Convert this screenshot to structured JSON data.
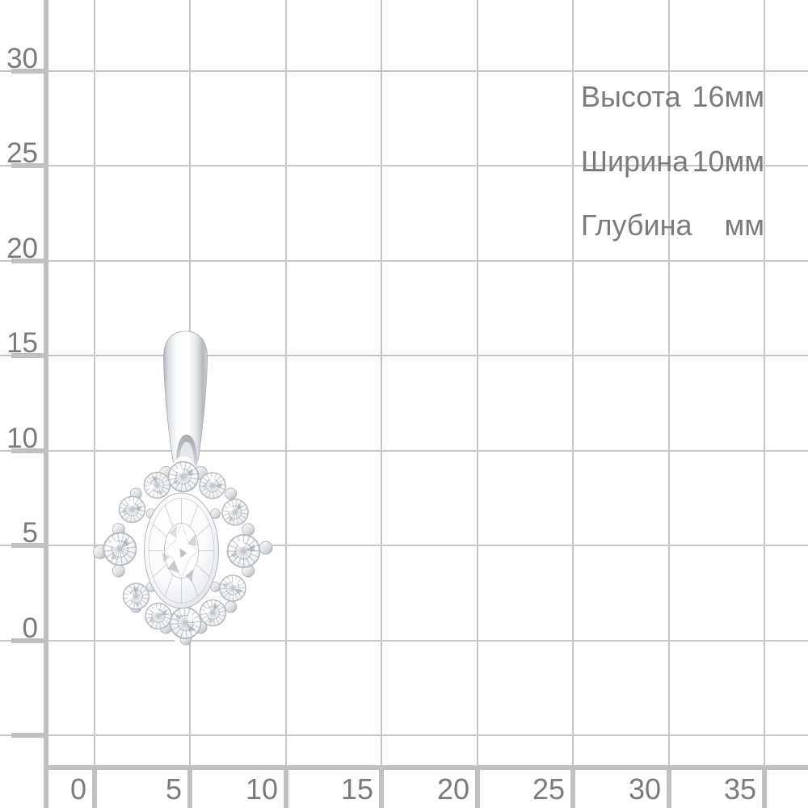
{
  "product": {
    "image_alt": "white gold pendant with oval gemstone and round-stone halo"
  },
  "dimensions": {
    "rows": [
      {
        "label": "Высота",
        "value": "16мм"
      },
      {
        "label": "Ширина",
        "value": "10мм"
      },
      {
        "label": "Глубина",
        "value": "мм"
      }
    ]
  },
  "axes": {
    "y_ticks": [
      "30",
      "25",
      "20",
      "15",
      "10",
      "5",
      "0"
    ],
    "x_ticks": [
      "0",
      "5",
      "10",
      "15",
      "20",
      "25",
      "30",
      "35"
    ]
  },
  "colors": {
    "grid_line": "#c6c6c6",
    "axis_line": "#c0c0c0",
    "text": "#7b7b7b"
  }
}
